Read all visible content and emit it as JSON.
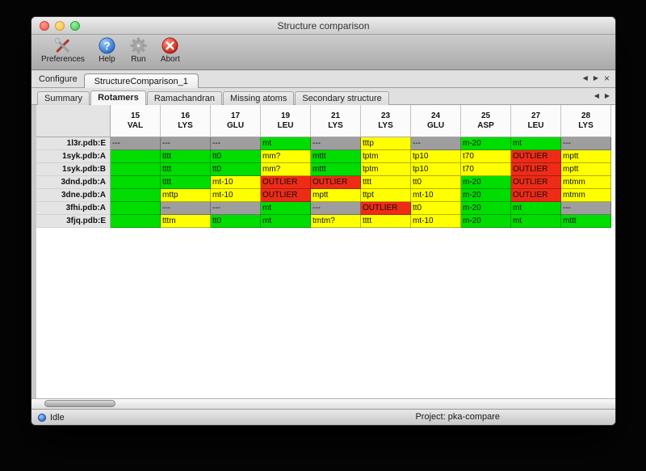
{
  "window": {
    "title": "Structure comparison"
  },
  "toolbar": {
    "items": [
      {
        "label": "Preferences",
        "icon": "tools-icon"
      },
      {
        "label": "Help",
        "icon": "help-icon"
      },
      {
        "label": "Run",
        "icon": "gear-icon"
      },
      {
        "label": "Abort",
        "icon": "abort-icon"
      }
    ]
  },
  "configure": {
    "label": "Configure",
    "tab_label": "StructureComparison_1"
  },
  "icons": {
    "prev": "◀",
    "next": "▶",
    "close": "×"
  },
  "tabs": {
    "items": [
      "Summary",
      "Rotamers",
      "Ramachandran",
      "Missing atoms",
      "Secondary structure"
    ],
    "active": "Rotamers"
  },
  "legend_colors": {
    "favored": "#00dd00",
    "allowed": "#ffff00",
    "outlier": "#ee2b17",
    "missing": "#9e9e9e"
  },
  "table": {
    "columns": [
      {
        "num": "15",
        "res": "VAL"
      },
      {
        "num": "16",
        "res": "LYS"
      },
      {
        "num": "17",
        "res": "GLU"
      },
      {
        "num": "19",
        "res": "LEU"
      },
      {
        "num": "21",
        "res": "LYS"
      },
      {
        "num": "23",
        "res": "LYS"
      },
      {
        "num": "24",
        "res": "GLU"
      },
      {
        "num": "25",
        "res": "ASP"
      },
      {
        "num": "27",
        "res": "LEU"
      },
      {
        "num": "28",
        "res": "LYS"
      }
    ],
    "rows": [
      {
        "label": "1l3r.pdb:E",
        "cells": [
          {
            "text": "---",
            "status": "missing"
          },
          {
            "text": "---",
            "status": "missing"
          },
          {
            "text": "---",
            "status": "missing"
          },
          {
            "text": "mt",
            "status": "favored"
          },
          {
            "text": "---",
            "status": "missing"
          },
          {
            "text": "tttp",
            "status": "allowed"
          },
          {
            "text": "---",
            "status": "missing"
          },
          {
            "text": "m-20",
            "status": "favored"
          },
          {
            "text": "mt",
            "status": "favored"
          },
          {
            "text": "---",
            "status": "missing"
          }
        ]
      },
      {
        "label": "1syk.pdb:A",
        "cells": [
          {
            "text": "",
            "status": "favored"
          },
          {
            "text": "tttt",
            "status": "favored"
          },
          {
            "text": "tt0",
            "status": "favored"
          },
          {
            "text": "mm?",
            "status": "allowed"
          },
          {
            "text": "mttt",
            "status": "favored"
          },
          {
            "text": "tptm",
            "status": "allowed"
          },
          {
            "text": "tp10",
            "status": "allowed"
          },
          {
            "text": "t70",
            "status": "allowed"
          },
          {
            "text": "OUTLIER",
            "status": "outlier"
          },
          {
            "text": "mptt",
            "status": "allowed"
          }
        ]
      },
      {
        "label": "1syk.pdb:B",
        "cells": [
          {
            "text": "",
            "status": "favored"
          },
          {
            "text": "tttt",
            "status": "favored"
          },
          {
            "text": "tt0",
            "status": "favored"
          },
          {
            "text": "mm?",
            "status": "allowed"
          },
          {
            "text": "mttt",
            "status": "favored"
          },
          {
            "text": "tptm",
            "status": "allowed"
          },
          {
            "text": "tp10",
            "status": "allowed"
          },
          {
            "text": "t70",
            "status": "allowed"
          },
          {
            "text": "OUTLIER",
            "status": "outlier"
          },
          {
            "text": "mptt",
            "status": "allowed"
          }
        ]
      },
      {
        "label": "3dnd.pdb:A",
        "cells": [
          {
            "text": "",
            "status": "favored"
          },
          {
            "text": "tttt",
            "status": "favored"
          },
          {
            "text": "mt-10",
            "status": "allowed"
          },
          {
            "text": "OUTLIER",
            "status": "outlier"
          },
          {
            "text": "OUTLIER",
            "status": "outlier"
          },
          {
            "text": "tttt",
            "status": "allowed"
          },
          {
            "text": "tt0",
            "status": "allowed"
          },
          {
            "text": "m-20",
            "status": "favored"
          },
          {
            "text": "OUTLIER",
            "status": "outlier"
          },
          {
            "text": "mtmm",
            "status": "allowed"
          }
        ]
      },
      {
        "label": "3dne.pdb:A",
        "cells": [
          {
            "text": "",
            "status": "favored"
          },
          {
            "text": "mttp",
            "status": "allowed"
          },
          {
            "text": "mt-10",
            "status": "allowed"
          },
          {
            "text": "OUTLIER",
            "status": "outlier"
          },
          {
            "text": "mptt",
            "status": "allowed"
          },
          {
            "text": "ttpt",
            "status": "allowed"
          },
          {
            "text": "mt-10",
            "status": "allowed"
          },
          {
            "text": "m-20",
            "status": "favored"
          },
          {
            "text": "OUTLIER",
            "status": "outlier"
          },
          {
            "text": "mtmm",
            "status": "allowed"
          }
        ]
      },
      {
        "label": "3fhi.pdb:A",
        "cells": [
          {
            "text": "",
            "status": "favored"
          },
          {
            "text": "---",
            "status": "missing"
          },
          {
            "text": "---",
            "status": "missing"
          },
          {
            "text": "mt",
            "status": "favored"
          },
          {
            "text": "---",
            "status": "missing"
          },
          {
            "text": "OUTLIER",
            "status": "outlier"
          },
          {
            "text": "tt0",
            "status": "allowed"
          },
          {
            "text": "m-20",
            "status": "favored"
          },
          {
            "text": "mt",
            "status": "favored"
          },
          {
            "text": "---",
            "status": "missing"
          }
        ]
      },
      {
        "label": "3fjq.pdb:E",
        "cells": [
          {
            "text": "",
            "status": "favored"
          },
          {
            "text": "tttm",
            "status": "allowed"
          },
          {
            "text": "tt0",
            "status": "favored"
          },
          {
            "text": "mt",
            "status": "favored"
          },
          {
            "text": "tmtm?",
            "status": "allowed"
          },
          {
            "text": "tttt",
            "status": "allowed"
          },
          {
            "text": "mt-10",
            "status": "allowed"
          },
          {
            "text": "m-20",
            "status": "favored"
          },
          {
            "text": "mt",
            "status": "favored"
          },
          {
            "text": "mttt",
            "status": "favored"
          }
        ]
      }
    ]
  },
  "status_bar": {
    "state": "Idle",
    "project": "Project: pka-compare"
  }
}
